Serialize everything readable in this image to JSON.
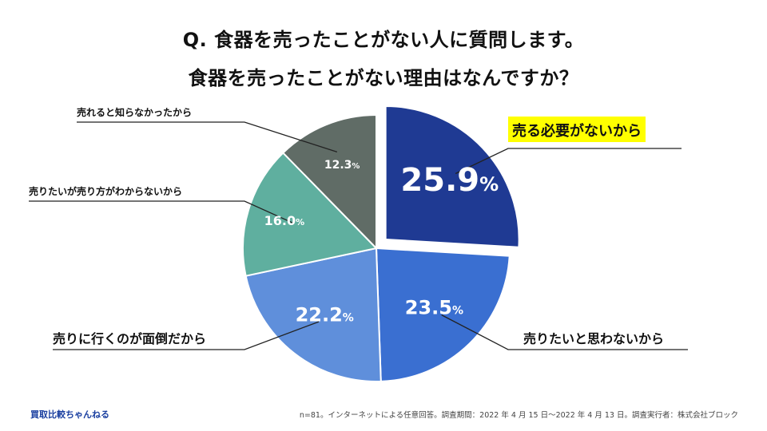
{
  "title_lines": [
    "Q. 食器を売ったことがない人に質問します。",
    "食器を売ったことがない理由はなんですか？"
  ],
  "colors": {
    "highlight": "#ffff00",
    "brand_text": "#1a3fa0",
    "slice_1": "#1f3a93",
    "slice_2": "#3a6fd1",
    "slice_3": "#5f8fdb",
    "slice_4": "#5faf9f",
    "slice_5": "#606c66"
  },
  "chart_data": {
    "type": "pie",
    "unit": "%",
    "start": "12 o'clock",
    "direction": "clockwise",
    "slices": [
      {
        "label": "売る必要がないから",
        "value": 25.9,
        "value_text": "25.9",
        "color": "#1f3a93",
        "exploded": true,
        "highlight": true
      },
      {
        "label": "売りたいと思わないから",
        "value": 23.5,
        "value_text": "23.5",
        "color": "#3a6fd1"
      },
      {
        "label": "売りに行くのが面倒だから",
        "value": 22.2,
        "value_text": "22.2",
        "color": "#5f8fdb"
      },
      {
        "label": "売りたいが売り方がわからないから",
        "value": 16.0,
        "value_text": "16.0",
        "color": "#5faf9f"
      },
      {
        "label": "売れると知らなかったから",
        "value": 12.3,
        "value_text": "12.3",
        "color": "#606c66"
      }
    ]
  },
  "footer": {
    "brand": "買取比較ちゃんねる",
    "note": "n=81。インターネットによる任意回答。調査期間：2022 年 4 月 15 日〜2022 年 4 月 13 日。調査実行者：株式会社ブロック"
  }
}
